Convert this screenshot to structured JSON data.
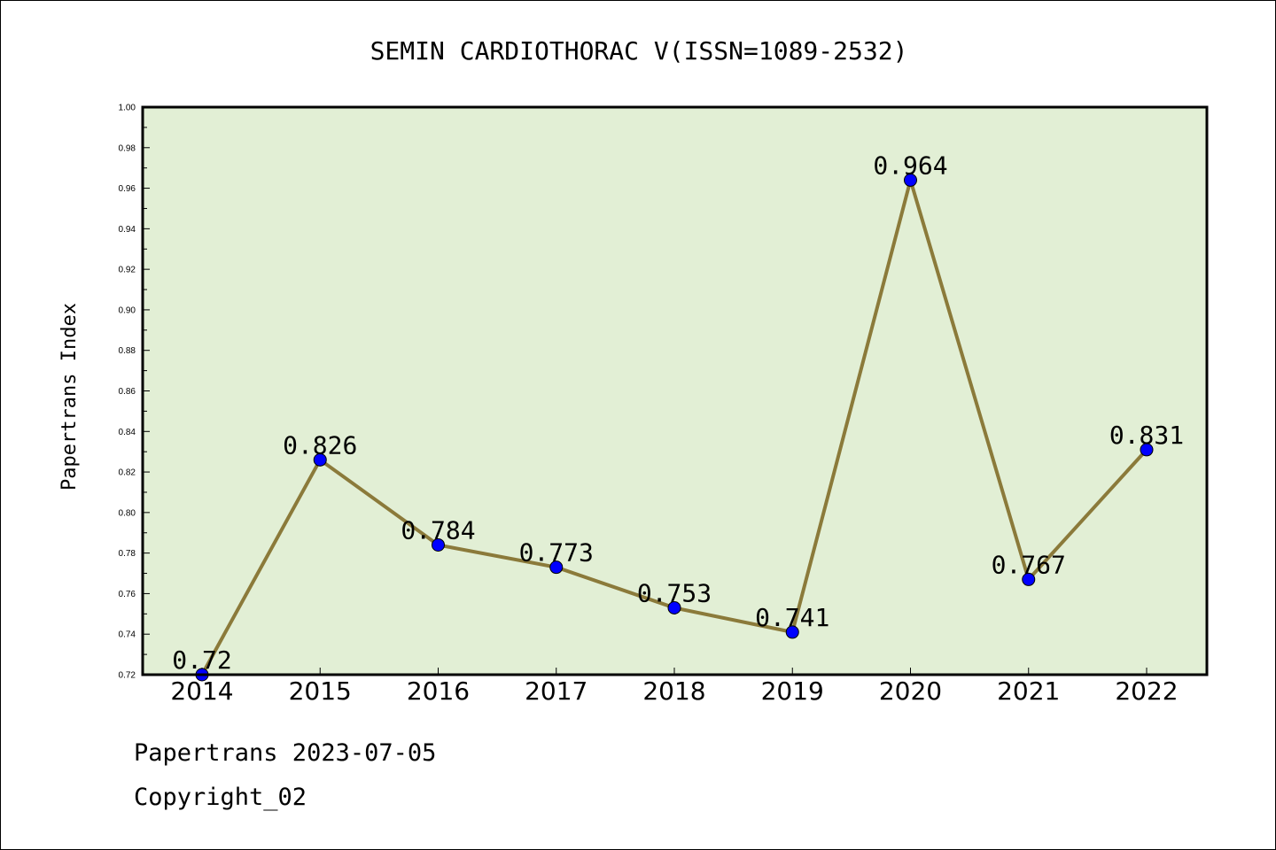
{
  "chart_data": {
    "type": "line",
    "title": "SEMIN CARDIOTHORAC V(ISSN=1089-2532)",
    "xlabel": "",
    "ylabel": "Papertrans Index",
    "categories": [
      "2014",
      "2015",
      "2016",
      "2017",
      "2018",
      "2019",
      "2020",
      "2021",
      "2022"
    ],
    "values": [
      0.72,
      0.826,
      0.784,
      0.773,
      0.753,
      0.741,
      0.964,
      0.767,
      0.831
    ],
    "data_labels": [
      "0.72",
      "0.826",
      "0.784",
      "0.773",
      "0.753",
      "0.741",
      "0.964",
      "0.767",
      "0.831"
    ],
    "ylim": [
      0.72,
      1.0
    ],
    "yticks": [
      0.72,
      0.74,
      0.76,
      0.78,
      0.8,
      0.82,
      0.84,
      0.86,
      0.88,
      0.9,
      0.92,
      0.94,
      0.96,
      0.98,
      1.0
    ],
    "ytick_labels": [
      "0.72",
      "0.74",
      "0.76",
      "0.78",
      "0.80",
      "0.82",
      "0.84",
      "0.86",
      "0.88",
      "0.90",
      "0.92",
      "0.94",
      "0.96",
      "0.98",
      "1.00"
    ],
    "grid": false,
    "colors": {
      "plot_background": "#e2efd5",
      "line": "#8b7a3a",
      "marker": "#0000ff"
    }
  },
  "footer": {
    "line1": "Papertrans 2023-07-05",
    "line2": "Copyright_02"
  }
}
